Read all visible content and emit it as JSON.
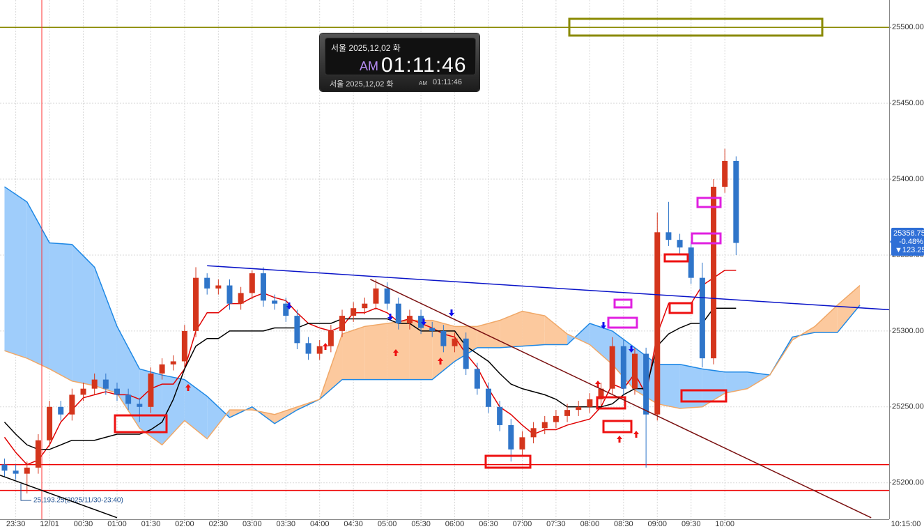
{
  "chart_data": {
    "type": "candlestick",
    "up_color": "#d4351c",
    "down_color": "#2f75c9",
    "x": [
      "23:20",
      "23:30",
      "23:40",
      "23:50",
      "00:00",
      "00:10",
      "00:20",
      "00:30",
      "00:40",
      "00:50",
      "01:00",
      "01:10",
      "01:20",
      "01:30",
      "01:40",
      "01:50",
      "02:00",
      "02:10",
      "02:20",
      "02:30",
      "02:40",
      "02:50",
      "03:00",
      "03:10",
      "03:20",
      "03:30",
      "03:40",
      "03:50",
      "04:00",
      "04:10",
      "04:20",
      "04:30",
      "04:40",
      "04:50",
      "05:00",
      "05:10",
      "05:20",
      "05:30",
      "05:40",
      "05:50",
      "06:00",
      "06:10",
      "06:20",
      "06:30",
      "06:40",
      "06:50",
      "07:00",
      "07:10",
      "07:20",
      "07:30",
      "07:40",
      "07:50",
      "08:00",
      "08:10",
      "08:20",
      "08:30",
      "08:40",
      "08:50",
      "09:00",
      "09:10",
      "09:20",
      "09:30",
      "09:40",
      "09:50",
      "10:00",
      "10:10"
    ],
    "open": [
      25212,
      25208,
      25206,
      25210,
      25228,
      25250,
      25245,
      25258,
      25262,
      25268,
      25262,
      25258,
      25252,
      25250,
      25272,
      25278,
      25280,
      25300,
      25335,
      25328,
      25330,
      25318,
      25325,
      25338,
      25320,
      25318,
      25310,
      25292,
      25285,
      25290,
      25300,
      25310,
      25315,
      25318,
      25328,
      25318,
      25305,
      25310,
      25302,
      25300,
      25290,
      25295,
      25275,
      25262,
      25250,
      25238,
      25222,
      25230,
      25236,
      25240,
      25244,
      25248,
      25250,
      25255,
      25262,
      25290,
      25262,
      25285,
      25245,
      25365,
      25360,
      25355,
      25335,
      25282,
      25395,
      25412
    ],
    "high": [
      25216,
      25212,
      25214,
      25232,
      25254,
      25254,
      25262,
      25266,
      25272,
      25272,
      25266,
      25262,
      25256,
      25276,
      25282,
      25284,
      25304,
      25342,
      25338,
      25334,
      25334,
      25329,
      25340,
      25342,
      25324,
      25322,
      25314,
      25296,
      25294,
      25304,
      25314,
      25319,
      25322,
      25334,
      25332,
      25322,
      25314,
      25314,
      25306,
      25304,
      25299,
      25299,
      25279,
      25266,
      25254,
      25242,
      25234,
      25240,
      25244,
      25248,
      25252,
      25254,
      25259,
      25266,
      25296,
      25294,
      25289,
      25289,
      25378,
      25385,
      25364,
      25359,
      25345,
      25400,
      25420,
      25415
    ],
    "low": [
      25204,
      25202,
      25193,
      25206,
      25224,
      25241,
      25241,
      25254,
      25258,
      25258,
      25254,
      25248,
      25240,
      25246,
      25268,
      25274,
      25276,
      25296,
      25324,
      25324,
      25314,
      25314,
      25321,
      25316,
      25314,
      25306,
      25288,
      25281,
      25281,
      25286,
      25296,
      25306,
      25311,
      25314,
      25314,
      25301,
      25301,
      25298,
      25296,
      25286,
      25286,
      25271,
      25258,
      25246,
      25234,
      25214,
      25218,
      25226,
      25232,
      25236,
      25240,
      25244,
      25246,
      25251,
      25258,
      25258,
      25258,
      25210,
      25241,
      25356,
      25351,
      25331,
      25276,
      25278,
      25391,
      25350
    ],
    "close": [
      25208,
      25206,
      25210,
      25228,
      25250,
      25245,
      25258,
      25262,
      25268,
      25262,
      25258,
      25252,
      25250,
      25272,
      25278,
      25280,
      25300,
      25335,
      25328,
      25330,
      25318,
      25325,
      25338,
      25320,
      25318,
      25310,
      25292,
      25285,
      25290,
      25300,
      25310,
      25315,
      25318,
      25328,
      25318,
      25305,
      25310,
      25302,
      25300,
      25290,
      25295,
      25275,
      25262,
      25250,
      25238,
      25222,
      25230,
      25236,
      25240,
      25244,
      25248,
      25250,
      25255,
      25262,
      25290,
      25262,
      25285,
      25245,
      25365,
      25360,
      25355,
      25335,
      25282,
      25395,
      25412,
      25358
    ],
    "lines": [
      {
        "color": "#e00000",
        "values": [
          25230,
          25220,
          25212,
          25215,
          25225,
          25240,
          25248,
          25256,
          25258,
          25260,
          25258,
          25258,
          25255,
          25262,
          25265,
          25265,
          25275,
          25300,
          25312,
          25312,
          25318,
          25318,
          25322,
          25325,
          25322,
          25320,
          25312,
          25305,
          25302,
          25300,
          25303,
          25312,
          25312,
          25315,
          25312,
          25306,
          25308,
          25305,
          25302,
          25298,
          25296,
          25285,
          25276,
          25262,
          25250,
          25245,
          25238,
          25232,
          25235,
          25235,
          25238,
          25240,
          25242,
          25250,
          25265,
          25262,
          25272,
          25258,
          25298,
          25318,
          25318,
          25318,
          25330,
          25335,
          25340,
          25340
        ]
      },
      {
        "color": "#000000",
        "values": [
          25240,
          25232,
          25225,
          25222,
          25222,
          25225,
          25228,
          25228,
          25228,
          25230,
          25232,
          25232,
          25232,
          25235,
          25240,
          25255,
          25275,
          25290,
          25295,
          25295,
          25300,
          25300,
          25300,
          25300,
          25302,
          25302,
          25302,
          25305,
          25305,
          25305,
          25308,
          25308,
          25308,
          25308,
          25308,
          25305,
          25305,
          25300,
          25300,
          25300,
          25300,
          25290,
          25285,
          25280,
          25272,
          25265,
          25262,
          25260,
          25258,
          25255,
          25250,
          25250,
          25250,
          25250,
          25252,
          25258,
          25262,
          25262,
          25290,
          25298,
          25302,
          25305,
          25305,
          25315,
          25315,
          25315
        ]
      }
    ],
    "cloud": {
      "x": [
        "23:20",
        "23:40",
        "00:00",
        "00:20",
        "00:40",
        "01:00",
        "01:20",
        "01:40",
        "02:00",
        "02:20",
        "02:40",
        "03:00",
        "03:20",
        "03:40",
        "04:00",
        "04:20",
        "04:40",
        "05:00",
        "05:20",
        "05:40",
        "06:00",
        "06:20",
        "06:40",
        "07:00",
        "07:20",
        "07:40",
        "08:00",
        "08:20",
        "08:40",
        "09:00",
        "09:20",
        "09:40",
        "10:00",
        "10:20",
        "10:40",
        "11:00",
        "11:20",
        "11:40",
        "12:00"
      ],
      "span_a": {
        "color": "#1e88e5",
        "fill": "#9fcdfb",
        "values": [
          25395,
          25385,
          25358,
          25357,
          25342,
          25303,
          25275,
          25271,
          25268,
          25257,
          25243,
          25250,
          25239,
          25248,
          25255,
          25268,
          25268,
          25268,
          25268,
          25268,
          25280,
          25289,
          25289,
          25290,
          25291,
          25291,
          25305,
          25300,
          25289,
          25278,
          25278,
          25275,
          25273,
          25273,
          25271,
          25296,
          25299,
          25299,
          25317
        ]
      },
      "span_b": {
        "color": "#f0a868",
        "fill": "#fcc99e",
        "values": [
          25287,
          25282,
          25275,
          25267,
          25264,
          25259,
          25236,
          25225,
          25241,
          25229,
          25248,
          25248,
          25245,
          25250,
          25255,
          25298,
          25303,
          25305,
          25307,
          25307,
          25303,
          25303,
          25307,
          25313,
          25310,
          25298,
          25291,
          25278,
          25261,
          25252,
          25249,
          25250,
          25259,
          25262,
          25271,
          25294,
          25303,
          25317,
          25330
        ]
      }
    },
    "trendlines": [
      {
        "color": "#0a14c8",
        "x": [
          "02:20",
          "12:26"
        ],
        "y": [
          25343,
          25314
        ]
      },
      {
        "color": "#7a1010",
        "x": [
          "04:45",
          "12:10"
        ],
        "y": [
          25334,
          25177
        ]
      },
      {
        "color": "#000000",
        "x": [
          "23:16",
          "01:00"
        ],
        "y": [
          25205,
          25177
        ]
      }
    ],
    "hlines": [
      {
        "value": 25500,
        "color": "#8a8a00"
      },
      {
        "value": 25212,
        "color": "#ee0000"
      },
      {
        "value": 25195,
        "color": "#ee0000"
      }
    ],
    "annotation": "25,193.25(2025/11/30-23:40)",
    "ylim": [
      25176,
      25518
    ],
    "yticks": [
      {
        "value": 25500,
        "label": "25500.00"
      },
      {
        "value": 25450,
        "label": "25450.00"
      },
      {
        "value": 25400,
        "label": "25400.00"
      },
      {
        "value": 25350,
        "label": "25350.00"
      },
      {
        "value": 25300,
        "label": "25300.00"
      },
      {
        "value": 25250,
        "label": "25250.00"
      },
      {
        "value": 25200,
        "label": "25200.00"
      }
    ],
    "xlim": [
      "23:16",
      "12:26"
    ],
    "xticks": [
      "23:30",
      {
        "value": "00:00",
        "label": "12/01"
      },
      "00:30",
      "01:00",
      "01:30",
      "02:00",
      "02:30",
      "03:00",
      "03:30",
      "04:00",
      "04:30",
      "05:00",
      "05:30",
      "06:00",
      "06:30",
      "07:00",
      "07:30",
      "08:00",
      "08:30",
      "09:00",
      "09:30",
      "10:00"
    ],
    "grid": true,
    "cursor_time": "10:15:00",
    "last_price": {
      "value": 25358.75,
      "label": "25358.75"
    },
    "change_percent": "-0.48%",
    "change_points": "▼123.25"
  },
  "clock": {
    "top_line": "서울 2025,12,02 화",
    "ampm": "AM",
    "time": "01:11:46",
    "bottom_line": "서울 2025,12,02 화",
    "bottom_ampm": "AM",
    "bottom_time": "01:11:46"
  }
}
